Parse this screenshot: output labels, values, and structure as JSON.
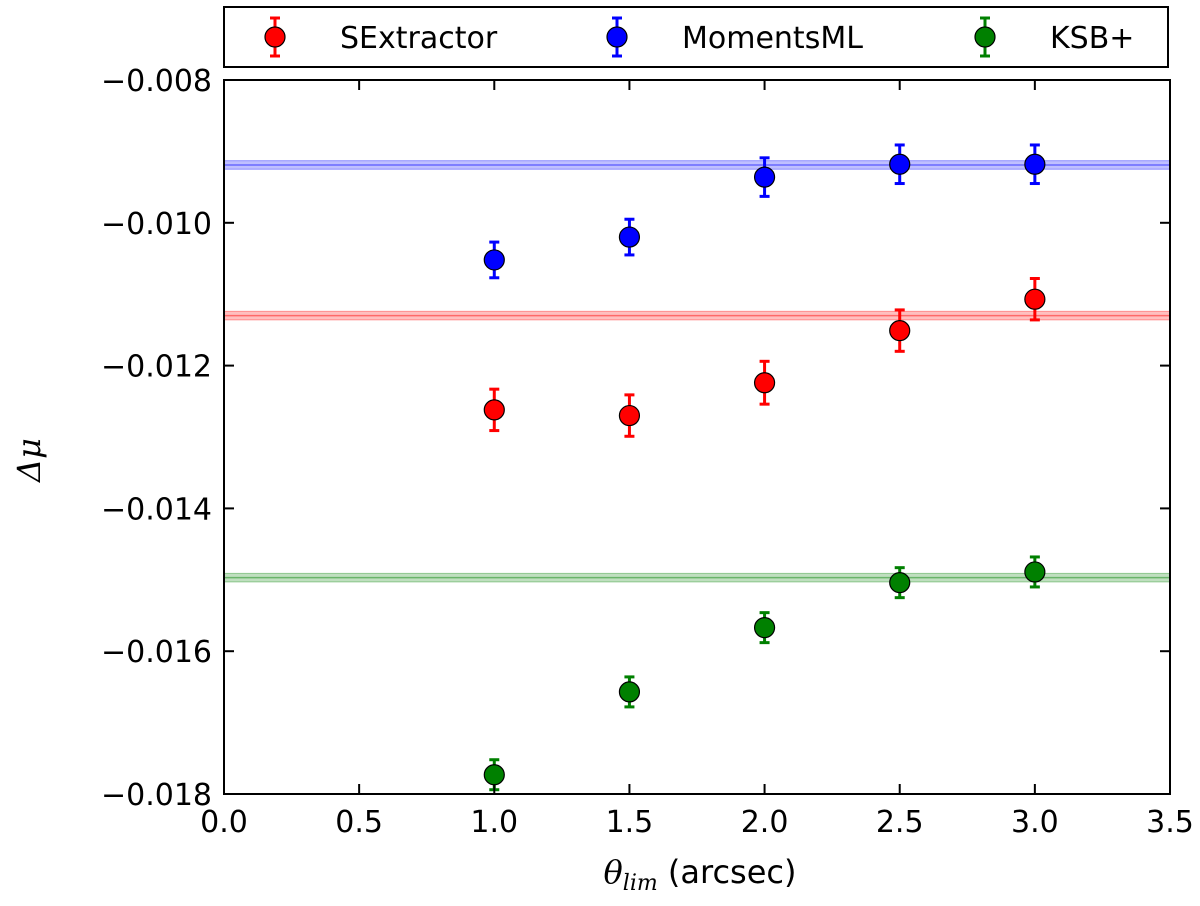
{
  "chart_data": {
    "type": "scatter",
    "title": "",
    "xlabel": {
      "symbol": "θ",
      "subscript": "lim",
      "unit": "(arcsec)"
    },
    "ylabel": "Δμ",
    "xlim": [
      0.0,
      3.5
    ],
    "ylim": [
      -0.018,
      -0.008
    ],
    "x_ticks": [
      "0.0",
      "0.5",
      "1.0",
      "1.5",
      "2.0",
      "2.5",
      "3.0",
      "3.5"
    ],
    "y_ticks": [
      "−0.018",
      "−0.016",
      "−0.014",
      "−0.012",
      "−0.010",
      "−0.008"
    ],
    "grid": false,
    "legend_position": "top (outside, above plot)",
    "series": [
      {
        "name": "SExtractor",
        "color": "#ff0000",
        "x": [
          1.0,
          1.5,
          2.0,
          2.5,
          3.0
        ],
        "y": [
          -0.01262,
          -0.0127,
          -0.01224,
          -0.01151,
          -0.01107
        ],
        "yerr": [
          0.00029,
          0.00029,
          0.0003,
          0.00029,
          0.00029
        ],
        "reference": -0.0113,
        "reference_halfwidth": 6e-05
      },
      {
        "name": "MomentsML",
        "color": "#0000ff",
        "x": [
          1.0,
          1.5,
          2.0,
          2.5,
          3.0
        ],
        "y": [
          -0.01052,
          -0.0102,
          -0.00936,
          -0.00918,
          -0.00918
        ],
        "yerr": [
          0.00025,
          0.00025,
          0.00027,
          0.00027,
          0.00027
        ],
        "reference": -0.00919,
        "reference_halfwidth": 6e-05
      },
      {
        "name": "KSB+",
        "color": "#008000",
        "x": [
          1.0,
          1.5,
          2.0,
          2.5,
          3.0
        ],
        "y": [
          -0.01773,
          -0.01657,
          -0.01567,
          -0.01504,
          -0.01489
        ],
        "yerr": [
          0.00021,
          0.00021,
          0.00021,
          0.00021,
          0.00021
        ],
        "reference": -0.01497,
        "reference_halfwidth": 6e-05
      }
    ]
  }
}
